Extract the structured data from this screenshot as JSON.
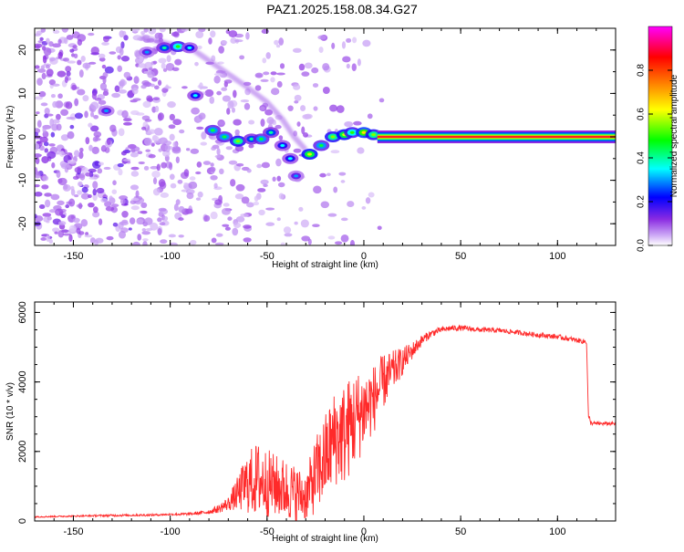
{
  "page_title": "PAZ1.2025.158.08.34.G27",
  "chart_data": [
    {
      "type": "heatmap",
      "title": "PAZ1.2025.158.08.34.G27",
      "xlabel": "Height of straight line (km)",
      "ylabel": "Frequency (Hz)",
      "xlim": [
        -170,
        130
      ],
      "ylim": [
        -25,
        25
      ],
      "x_ticks": [
        -150,
        -100,
        -50,
        0,
        50,
        100
      ],
      "y_ticks": [
        -20,
        -10,
        0,
        10,
        20
      ],
      "colorbar": {
        "label": "Normalized spectral amplitude",
        "range": [
          0,
          1
        ],
        "ticks": [
          "0.0",
          "0.2",
          "0.4",
          "0.6",
          "0.8"
        ],
        "tick_values": [
          0,
          0.2,
          0.4,
          0.6,
          0.8
        ],
        "colormap": [
          "#ffffff",
          "#8a2be2",
          "#0000ff",
          "#00ffff",
          "#00ff00",
          "#ffff00",
          "#ff8000",
          "#ff0000",
          "#ff00ff"
        ]
      },
      "ridge": [
        {
          "x": -112,
          "f": 19.5,
          "a": 0.15
        },
        {
          "x": -103,
          "f": 20.5,
          "a": 0.25
        },
        {
          "x": -96,
          "f": 20.8,
          "a": 0.35
        },
        {
          "x": -90,
          "f": 20.5,
          "a": 0.2
        },
        {
          "x": -133,
          "f": 6,
          "a": 0.15
        },
        {
          "x": -87,
          "f": 9.5,
          "a": 0.2
        },
        {
          "x": -78,
          "f": 1.5,
          "a": 0.3
        },
        {
          "x": -72,
          "f": 0,
          "a": 0.3
        },
        {
          "x": -65,
          "f": -1,
          "a": 0.4
        },
        {
          "x": -58,
          "f": -0.5,
          "a": 0.25
        },
        {
          "x": -53,
          "f": -0.5,
          "a": 0.3
        },
        {
          "x": -48,
          "f": 1,
          "a": 0.25
        },
        {
          "x": -42,
          "f": -2,
          "a": 0.2
        },
        {
          "x": -38,
          "f": -5,
          "a": 0.2
        },
        {
          "x": -35,
          "f": -9,
          "a": 0.15
        },
        {
          "x": -28,
          "f": -4,
          "a": 0.45
        },
        {
          "x": -22,
          "f": -2,
          "a": 0.3
        },
        {
          "x": -16,
          "f": 0,
          "a": 0.4
        },
        {
          "x": -10,
          "f": 0.5,
          "a": 0.45
        },
        {
          "x": -6,
          "f": 1,
          "a": 0.35
        },
        {
          "x": 0,
          "f": 1,
          "a": 0.5
        },
        {
          "x": 5,
          "f": 0.5,
          "a": 0.4
        }
      ],
      "arc": [
        {
          "x": -115,
          "f": 23
        },
        {
          "x": -88,
          "f": 20
        },
        {
          "x": -75,
          "f": 16
        },
        {
          "x": -62,
          "f": 12
        },
        {
          "x": -50,
          "f": 8
        },
        {
          "x": -42,
          "f": 4
        },
        {
          "x": -36,
          "f": 0
        },
        {
          "x": -30,
          "f": -3
        }
      ],
      "tone": {
        "x_start": 7,
        "x_end": 130,
        "f": 0,
        "a": 1.0
      }
    },
    {
      "type": "line",
      "xlabel": "Height of straight line (km)",
      "ylabel": "SNR (10 * v/v)",
      "xlim": [
        -170,
        130
      ],
      "ylim": [
        0,
        6300
      ],
      "x_ticks": [
        -150,
        -100,
        -50,
        0,
        50,
        100
      ],
      "y_ticks": [
        0,
        2000,
        4000,
        6000
      ],
      "color": "#ff2a2a",
      "series": [
        {
          "x": [
            -170,
            -150,
            -130,
            -110,
            -100,
            -90,
            -80,
            -75,
            -70,
            -65,
            -60,
            -55,
            -50,
            -45,
            -40,
            -35,
            -30,
            -25,
            -20,
            -15,
            -10,
            -5,
            0,
            5,
            10,
            15,
            20,
            25,
            30,
            35,
            40,
            45,
            50,
            60,
            70,
            80,
            90,
            100,
            110,
            115,
            116,
            117,
            120,
            130
          ],
          "y": [
            120,
            140,
            160,
            170,
            190,
            200,
            260,
            350,
            500,
            800,
            1100,
            1200,
            1100,
            1000,
            900,
            800,
            700,
            1300,
            1800,
            2400,
            2500,
            2900,
            3200,
            3500,
            4000,
            4300,
            4600,
            4900,
            5200,
            5400,
            5500,
            5550,
            5550,
            5500,
            5480,
            5420,
            5350,
            5300,
            5200,
            5150,
            3000,
            2820,
            2800,
            2800
          ],
          "spread": [
            20,
            20,
            30,
            30,
            30,
            40,
            60,
            120,
            200,
            500,
            900,
            1100,
            1000,
            900,
            900,
            800,
            700,
            1100,
            1300,
            1400,
            1500,
            1400,
            1200,
            1000,
            800,
            600,
            400,
            250,
            150,
            100,
            80,
            80,
            80,
            70,
            70,
            70,
            70,
            70,
            70,
            70,
            0,
            60,
            50,
            50
          ]
        }
      ]
    }
  ]
}
